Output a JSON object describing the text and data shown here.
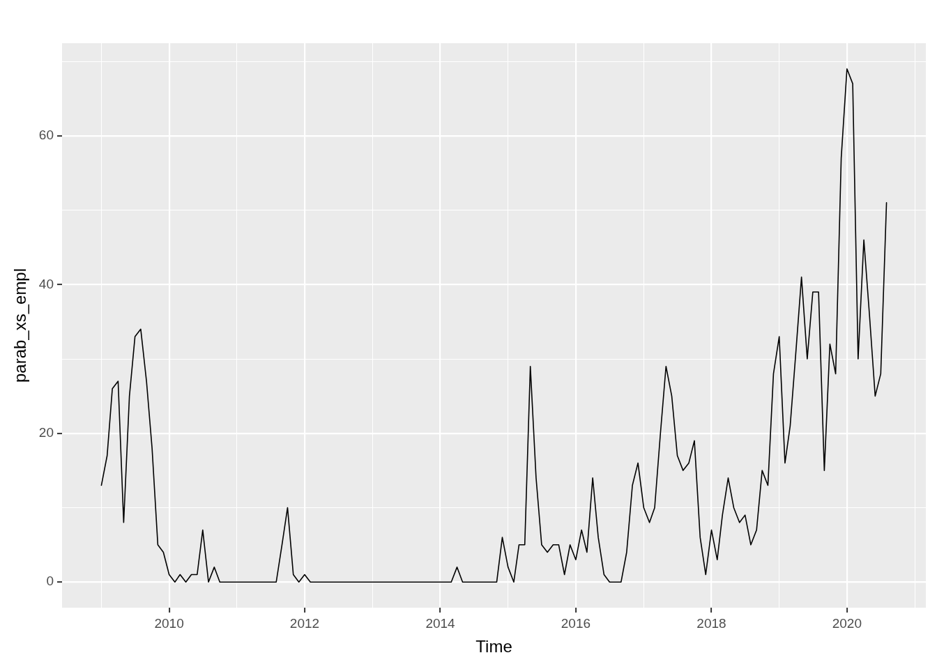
{
  "chart_data": {
    "type": "line",
    "xlabel": "Time",
    "ylabel": "parab_xs_empl",
    "x": [
      "2009-01",
      "2009-02",
      "2009-03",
      "2009-04",
      "2009-05",
      "2009-06",
      "2009-07",
      "2009-08",
      "2009-09",
      "2009-10",
      "2009-11",
      "2009-12",
      "2010-01",
      "2010-02",
      "2010-03",
      "2010-04",
      "2010-05",
      "2010-06",
      "2010-07",
      "2010-08",
      "2010-09",
      "2010-10",
      "2010-11",
      "2010-12",
      "2011-01",
      "2011-02",
      "2011-03",
      "2011-04",
      "2011-05",
      "2011-06",
      "2011-07",
      "2011-08",
      "2011-09",
      "2011-10",
      "2011-11",
      "2011-12",
      "2012-01",
      "2012-02",
      "2012-03",
      "2012-04",
      "2012-05",
      "2012-06",
      "2012-07",
      "2012-08",
      "2012-09",
      "2012-10",
      "2012-11",
      "2012-12",
      "2013-01",
      "2013-02",
      "2013-03",
      "2013-04",
      "2013-05",
      "2013-06",
      "2013-07",
      "2013-08",
      "2013-09",
      "2013-10",
      "2013-11",
      "2013-12",
      "2014-01",
      "2014-02",
      "2014-03",
      "2014-04",
      "2014-05",
      "2014-06",
      "2014-07",
      "2014-08",
      "2014-09",
      "2014-10",
      "2014-11",
      "2014-12",
      "2015-01",
      "2015-02",
      "2015-03",
      "2015-04",
      "2015-05",
      "2015-06",
      "2015-07",
      "2015-08",
      "2015-09",
      "2015-10",
      "2015-11",
      "2015-12",
      "2016-01",
      "2016-02",
      "2016-03",
      "2016-04",
      "2016-05",
      "2016-06",
      "2016-07",
      "2016-08",
      "2016-09",
      "2016-10",
      "2016-11",
      "2016-12",
      "2017-01",
      "2017-02",
      "2017-03",
      "2017-04",
      "2017-05",
      "2017-06",
      "2017-07",
      "2017-08",
      "2017-09",
      "2017-10",
      "2017-11",
      "2017-12",
      "2018-01",
      "2018-02",
      "2018-03",
      "2018-04",
      "2018-05",
      "2018-06",
      "2018-07",
      "2018-08",
      "2018-09",
      "2018-10",
      "2018-11",
      "2018-12",
      "2019-01",
      "2019-02",
      "2019-03",
      "2019-04",
      "2019-05",
      "2019-06",
      "2019-07",
      "2019-08",
      "2019-09",
      "2019-10",
      "2019-11",
      "2019-12",
      "2020-01",
      "2020-02",
      "2020-03",
      "2020-04",
      "2020-05",
      "2020-06",
      "2020-07",
      "2020-08"
    ],
    "series": [
      {
        "color": "#000000",
        "values": [
          13,
          17,
          26,
          27,
          8,
          25,
          33,
          34,
          27,
          18,
          5,
          4,
          1,
          0,
          1,
          0,
          1,
          1,
          7,
          0,
          2,
          0,
          0,
          0,
          0,
          0,
          0,
          0,
          0,
          0,
          0,
          0,
          5,
          10,
          1,
          0,
          1,
          0,
          0,
          0,
          0,
          0,
          0,
          0,
          0,
          0,
          0,
          0,
          0,
          0,
          0,
          0,
          0,
          0,
          0,
          0,
          0,
          0,
          0,
          0,
          0,
          0,
          0,
          2,
          0,
          0,
          0,
          0,
          0,
          0,
          0,
          6,
          2,
          0,
          5,
          5,
          29,
          14,
          5,
          4,
          5,
          5,
          1,
          5,
          3,
          7,
          4,
          14,
          6,
          1,
          0,
          0,
          0,
          4,
          13,
          16,
          10,
          8,
          10,
          20,
          29,
          25,
          17,
          15,
          16,
          19,
          6,
          1,
          7,
          3,
          9,
          14,
          10,
          8,
          9,
          5,
          7,
          15,
          13,
          28,
          33,
          16,
          21,
          31,
          41,
          30,
          39,
          39,
          15,
          32,
          28,
          57,
          69,
          67,
          30,
          46,
          36,
          25,
          28,
          51
        ]
      }
    ],
    "xlim": [
      "2008-06-03",
      "2021-03-01"
    ],
    "xticks": [
      {
        "value": "2009",
        "label": null
      },
      "2010",
      {
        "value": "2011",
        "label": null
      },
      "2012",
      {
        "value": "2013",
        "label": null
      },
      "2014",
      {
        "value": "2015",
        "label": null
      },
      "2016",
      {
        "value": "2017",
        "label": null
      },
      "2018",
      {
        "value": "2019",
        "label": null
      },
      "2020",
      {
        "value": "2021",
        "label": null
      }
    ],
    "ylim": [
      -3.45,
      72.45
    ],
    "yticks": [
      0,
      {
        "value": 10,
        "label": null
      },
      20,
      {
        "value": 30,
        "label": null
      },
      40,
      {
        "value": 50,
        "label": null
      },
      60,
      {
        "value": 70,
        "label": null
      }
    ],
    "grid": true,
    "marker": "none",
    "line_style": "solid"
  }
}
